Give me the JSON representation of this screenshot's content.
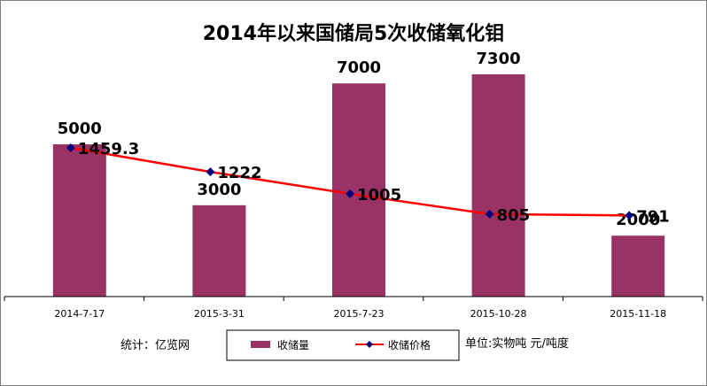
{
  "chart_data": {
    "type": "bar",
    "title": "2014年以来国储局5次收储氧化钼",
    "categories": [
      "2014-7-17",
      "2015-3-31",
      "2015-7-23",
      "2015-10-28",
      "2015-11-18"
    ],
    "series": [
      {
        "name": "收储量",
        "type": "bar",
        "values": [
          5000,
          3000,
          7000,
          7300,
          2000
        ],
        "color": "#993366"
      },
      {
        "name": "收储价格",
        "type": "line",
        "values": [
          1459.3,
          1222,
          1005,
          805,
          791
        ],
        "color": "#ff0000",
        "marker_color": "#000080"
      }
    ],
    "value_labels": [
      "5000",
      "3000",
      "7000",
      "7300",
      "2000"
    ],
    "price_labels": [
      "1459.3",
      "1222",
      "1005",
      "805",
      "791"
    ],
    "ylim": [
      0,
      8000
    ],
    "grid": false,
    "legend_position": "bottom"
  },
  "footer": {
    "source": "统计：亿览网",
    "unit": "单位:实物吨 元/吨度"
  }
}
